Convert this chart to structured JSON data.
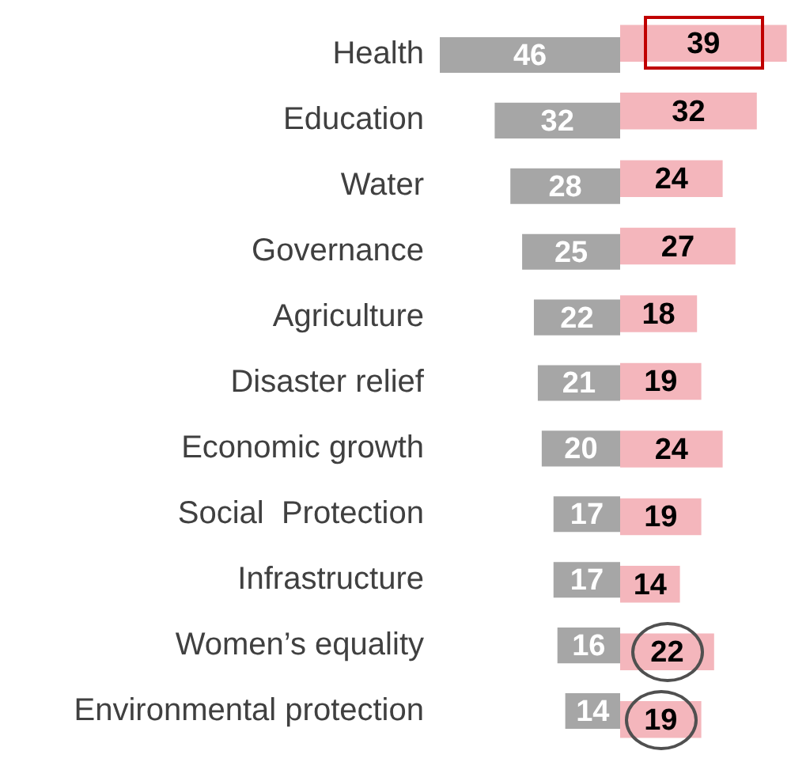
{
  "chart_data": [
    {
      "type": "bar",
      "orientation": "horizontal",
      "tick_labels": "y",
      "grid": false,
      "legend": false,
      "data_labels": true,
      "xlim": [
        46,
        0
      ],
      "categories": [
        "Health",
        "Education",
        "Water",
        "Governance",
        "Agriculture",
        "Disaster relief",
        "Economic growth",
        "Social  Protection",
        "Infrastructure",
        "Women’s equality",
        "Environmental protection"
      ],
      "series": [
        {
          "color": "#a6a6a6",
          "values": [
            46,
            32,
            28,
            25,
            22,
            21,
            20,
            17,
            17,
            16,
            14
          ]
        }
      ]
    },
    {
      "type": "bar",
      "orientation": "horizontal",
      "tick_labels": false,
      "grid": false,
      "legend": false,
      "data_labels": true,
      "categories": [
        null,
        null,
        null,
        null,
        null,
        null,
        null,
        null,
        null,
        null,
        null
      ],
      "series": [
        {
          "color": "#f4b6bc",
          "values": [
            39,
            32,
            24,
            27,
            18,
            19,
            24,
            19,
            14,
            22,
            19
          ]
        }
      ]
    }
  ]
}
